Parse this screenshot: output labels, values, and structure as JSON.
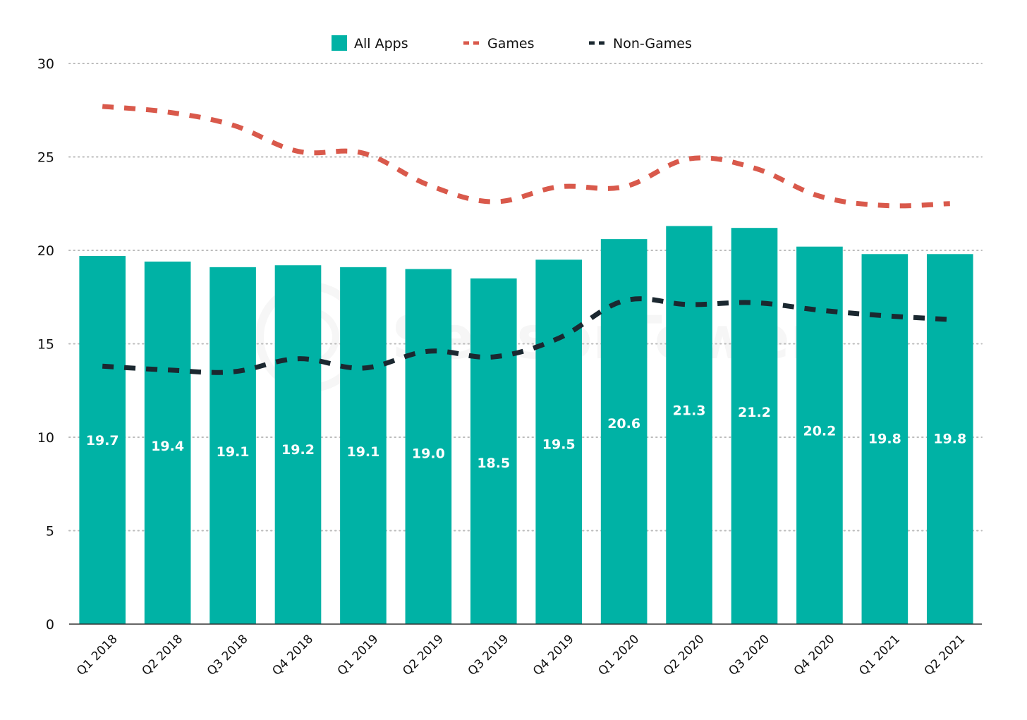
{
  "chart_data": {
    "type": "bar",
    "title": "",
    "xlabel": "",
    "ylabel": "",
    "ylim": [
      0,
      30
    ],
    "yticks": [
      0,
      5,
      10,
      15,
      20,
      25,
      30
    ],
    "grid": true,
    "legend_position": "top-center",
    "watermark": "SensorTower",
    "categories": [
      "Q1 2018",
      "Q2 2018",
      "Q3 2018",
      "Q4 2018",
      "Q1 2019",
      "Q2 2019",
      "Q3 2019",
      "Q4 2019",
      "Q1 2020",
      "Q2 2020",
      "Q3 2020",
      "Q4 2020",
      "Q1 2021",
      "Q2 2021"
    ],
    "series": [
      {
        "name": "All Apps",
        "type": "bar",
        "color": "#00B2A5",
        "values": [
          19.7,
          19.4,
          19.1,
          19.2,
          19.1,
          19.0,
          18.5,
          19.5,
          20.6,
          21.3,
          21.2,
          20.2,
          19.8,
          19.8
        ],
        "labels": [
          "19.7",
          "19.4",
          "19.1",
          "19.2",
          "19.1",
          "19.0",
          "18.5",
          "19.5",
          "20.6",
          "21.3",
          "21.2",
          "20.2",
          "19.8",
          "19.8"
        ]
      },
      {
        "name": "Games",
        "type": "line",
        "style": "dashed",
        "color": "#D9594B",
        "values": [
          27.7,
          27.4,
          26.7,
          25.3,
          25.2,
          23.5,
          22.6,
          23.4,
          23.4,
          24.9,
          24.4,
          22.9,
          22.4,
          22.5
        ]
      },
      {
        "name": "Non-Games",
        "type": "line",
        "style": "dashed",
        "color": "#1B2830",
        "values": [
          13.8,
          13.6,
          13.5,
          14.2,
          13.7,
          14.6,
          14.3,
          15.3,
          17.3,
          17.1,
          17.2,
          16.8,
          16.5,
          16.3
        ]
      }
    ]
  }
}
